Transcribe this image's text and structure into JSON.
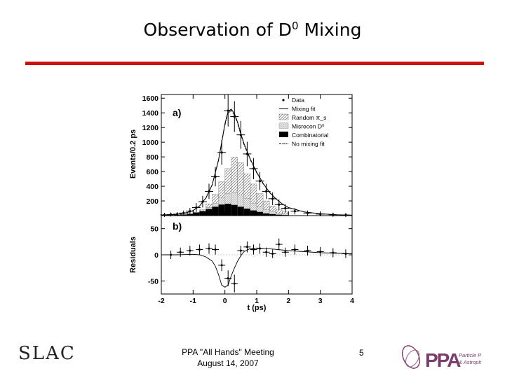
{
  "slide": {
    "title_main": "Observation of D",
    "title_sup": "0",
    "title_tail": " Mixing",
    "footer_line1": "PPA \"All Hands\" Meeting",
    "footer_line2": "August 14, 2007",
    "page_number": "5",
    "left_logo": "SLAC",
    "right_logo_text": "PPA",
    "right_logo_sub1": "Particle Physics",
    "right_logo_sub2": "& Astrophysics",
    "accent_color": "#cc1111"
  },
  "chart_data": [
    {
      "panel": "top",
      "type": "histogram",
      "panel_label": "a)",
      "ylabel": "Events/0.2 ps",
      "xlim": [
        -2,
        4
      ],
      "ylim": [
        0,
        1650
      ],
      "yticks": [
        "200",
        "400",
        "600",
        "800",
        "1000",
        "1200",
        "1400",
        "1600"
      ],
      "legend_position": "top-right",
      "legend": [
        "Data",
        "Mixing fit",
        "Random π_s",
        "Misrecon D⁰",
        "Combinatorial",
        "No mixing fit"
      ],
      "bin_edges": [
        -2.0,
        -1.8,
        -1.6,
        -1.4,
        -1.2,
        -1.0,
        -0.8,
        -0.6,
        -0.4,
        -0.2,
        0.0,
        0.2,
        0.4,
        0.6,
        0.8,
        1.0,
        1.2,
        1.4,
        1.6,
        1.8,
        2.0
      ],
      "random_pis": [
        5,
        5,
        10,
        15,
        25,
        45,
        80,
        160,
        290,
        460,
        640,
        800,
        720,
        570,
        430,
        300,
        200,
        130,
        80,
        50
      ],
      "misrecon_d0": [
        5,
        5,
        10,
        15,
        25,
        40,
        65,
        110,
        170,
        240,
        300,
        320,
        280,
        230,
        170,
        120,
        80,
        50,
        30,
        20
      ],
      "combinatorial": [
        5,
        5,
        10,
        15,
        25,
        40,
        60,
        90,
        120,
        150,
        160,
        145,
        120,
        95,
        70,
        50,
        30,
        20,
        12,
        8
      ],
      "data_x": [
        -1.9,
        -1.7,
        -1.5,
        -1.3,
        -1.1,
        -0.9,
        -0.7,
        -0.5,
        -0.3,
        -0.1,
        0.1,
        0.3,
        0.5,
        0.7,
        0.9,
        1.1,
        1.3,
        1.5,
        1.7,
        1.9,
        2.2,
        2.6,
        3.0,
        3.4,
        3.8
      ],
      "data_y": [
        10,
        15,
        20,
        35,
        60,
        110,
        190,
        330,
        530,
        860,
        1430,
        1350,
        1100,
        840,
        640,
        470,
        330,
        230,
        150,
        100,
        60,
        35,
        20,
        12,
        8
      ],
      "fit_x": [
        -2.0,
        -1.6,
        -1.2,
        -1.0,
        -0.8,
        -0.6,
        -0.4,
        -0.2,
        0.0,
        0.1,
        0.2,
        0.3,
        0.4,
        0.5,
        0.6,
        0.8,
        1.0,
        1.2,
        1.4,
        1.6,
        1.8,
        2.0,
        2.5,
        3.0,
        3.5,
        4.0
      ],
      "fit_y": [
        5,
        12,
        40,
        70,
        130,
        240,
        420,
        760,
        1250,
        1420,
        1450,
        1390,
        1270,
        1120,
        980,
        770,
        590,
        440,
        320,
        230,
        160,
        110,
        50,
        25,
        12,
        6
      ]
    },
    {
      "panel": "bottom",
      "type": "scatter",
      "panel_label": "b)",
      "ylabel": "Residuals",
      "xlabel": "t (ps)",
      "xlim": [
        -2,
        4
      ],
      "ylim": [
        -75,
        75
      ],
      "yticks": [
        "-50",
        "0",
        "50"
      ],
      "xticks": [
        "-2",
        "-1",
        "0",
        "1",
        "2",
        "3",
        "4"
      ],
      "points_x": [
        -1.7,
        -1.4,
        -1.1,
        -0.8,
        -0.5,
        -0.3,
        -0.1,
        0.1,
        0.3,
        0.5,
        0.7,
        0.9,
        1.1,
        1.3,
        1.5,
        1.7,
        1.9,
        2.2,
        2.6,
        3.0,
        3.4,
        3.8
      ],
      "points_y": [
        0,
        5,
        8,
        10,
        12,
        10,
        -20,
        -45,
        -55,
        8,
        15,
        10,
        12,
        5,
        2,
        20,
        5,
        10,
        8,
        6,
        4,
        2
      ],
      "fit_x": [
        -2.0,
        -1.5,
        -1.0,
        -0.8,
        -0.6,
        -0.4,
        -0.3,
        -0.2,
        -0.1,
        0.0,
        0.1,
        0.2,
        0.3,
        0.4,
        0.5,
        0.6,
        0.8,
        1.0,
        1.5,
        2.0,
        3.0,
        4.0
      ],
      "fit_y": [
        0,
        0,
        1,
        0,
        -4,
        -12,
        -22,
        -38,
        -58,
        -62,
        -58,
        -40,
        -25,
        -12,
        -2,
        6,
        12,
        13,
        11,
        8,
        4,
        2
      ]
    }
  ]
}
